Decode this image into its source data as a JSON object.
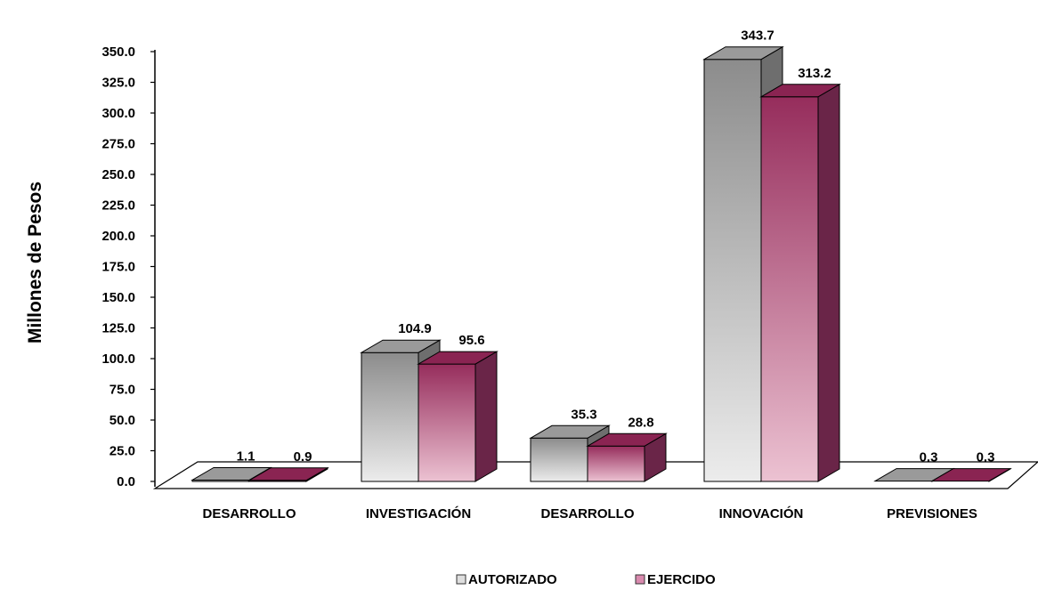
{
  "chart_data": {
    "type": "bar",
    "categories": [
      "DESARROLLO",
      "INVESTIGACIÓN",
      "DESARROLLO",
      "INNOVACIÓN",
      "PREVISIONES"
    ],
    "series": [
      {
        "name": "AUTORIZADO",
        "values": [
          1.1,
          104.9,
          35.3,
          343.7,
          0.3
        ],
        "labels": [
          "1.1",
          "104.9",
          "35.3",
          "343.7",
          "0.3"
        ]
      },
      {
        "name": "EJERCIDO",
        "values": [
          0.9,
          95.6,
          28.8,
          313.2,
          0.3
        ],
        "labels": [
          "0.9",
          "95.6",
          "28.8",
          "313.2",
          "0.3"
        ]
      }
    ],
    "yticks": [
      "0.0",
      "25.0",
      "50.0",
      "75.0",
      "100.0",
      "125.0",
      "150.0",
      "175.0",
      "200.0",
      "225.0",
      "250.0",
      "275.0",
      "300.0",
      "325.0",
      "350.0"
    ],
    "ylim": [
      0,
      350
    ],
    "ylabel": "Millones de Pesos",
    "xlabel": "",
    "title": "",
    "legend": "bottom-center",
    "three_d": true,
    "colors": {
      "AUTORIZADO": {
        "top": "#9a9a9a",
        "front_top": "#8c8c8c",
        "front_bottom": "#ececec",
        "side": "#6e6e6e"
      },
      "EJERCIDO": {
        "top": "#8a2452",
        "front_top": "#962d5c",
        "front_bottom": "#ecc2d2",
        "side": "#6a2548"
      }
    }
  }
}
